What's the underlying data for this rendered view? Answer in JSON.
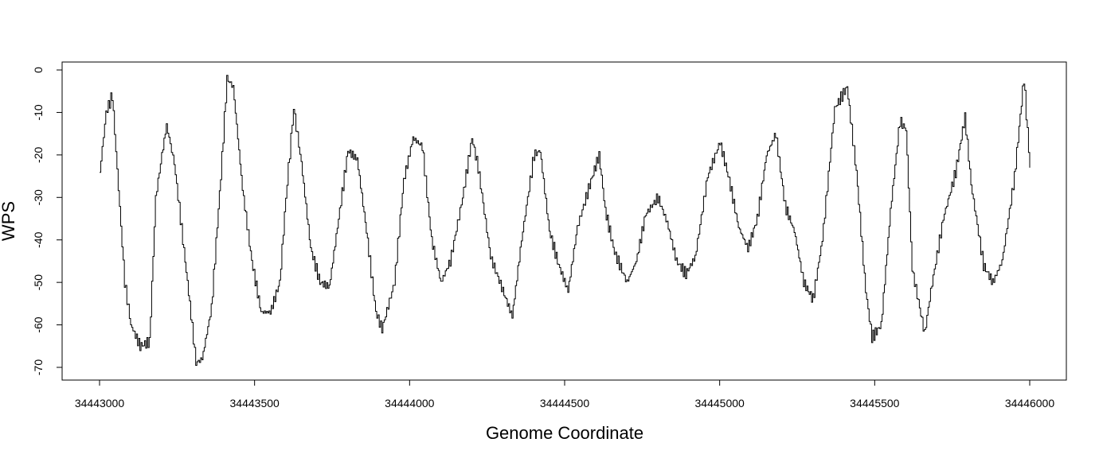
{
  "chart_data": {
    "type": "line",
    "title": "",
    "xlabel": "Genome Coordinate",
    "ylabel": "WPS",
    "xlim": [
      34443000,
      34446000
    ],
    "ylim": [
      -70,
      0
    ],
    "x_ticks": [
      34443000,
      34443500,
      34444000,
      34444500,
      34445000,
      34445500,
      34446000
    ],
    "x_tick_labels": [
      "34443000",
      "34443500",
      "34444000",
      "34444500",
      "34445000",
      "34445500",
      "34446000"
    ],
    "y_ticks": [
      0,
      -10,
      -20,
      -30,
      -40,
      -50,
      -60,
      -70
    ],
    "y_tick_labels": [
      "0",
      "-10",
      "-20",
      "-30",
      "-40",
      "-50",
      "-60",
      "-70"
    ],
    "grid": false,
    "legend": false,
    "line_color": "#000000",
    "series": [
      {
        "x": [
          34443000,
          34443020,
          34443040,
          34443060,
          34443080,
          34443100,
          34443130,
          34443160,
          34443180,
          34443200,
          34443215,
          34443240,
          34443260,
          34443290,
          34443310,
          34443330,
          34443360,
          34443390,
          34443410,
          34443430,
          34443460,
          34443490,
          34443520,
          34443550,
          34443580,
          34443600,
          34443625,
          34443650,
          34443680,
          34443710,
          34443740,
          34443770,
          34443800,
          34443830,
          34443860,
          34443890,
          34443910,
          34443950,
          34443980,
          34444010,
          34444040,
          34444070,
          34444100,
          34444130,
          34444170,
          34444200,
          34444220,
          34444260,
          34444300,
          34444330,
          34444360,
          34444400,
          34444420,
          34444450,
          34444480,
          34444510,
          34444540,
          34444580,
          34444610,
          34444630,
          34444660,
          34444700,
          34444730,
          34444760,
          34444800,
          34444830,
          34444860,
          34444890,
          34444920,
          34444960,
          34445000,
          34445030,
          34445060,
          34445090,
          34445120,
          34445150,
          34445180,
          34445210,
          34445240,
          34445270,
          34445300,
          34445330,
          34445370,
          34445410,
          34445440,
          34445470,
          34445490,
          34445520,
          34445550,
          34445580,
          34445600,
          34445620,
          34445660,
          34445680,
          34445720,
          34445760,
          34445790,
          34445810,
          34445850,
          34445880,
          34445910,
          34445950,
          34445980,
          34446000
        ],
        "values": [
          -24,
          -10,
          -6,
          -28,
          -50,
          -60,
          -65,
          -64,
          -30,
          -20,
          -13,
          -22,
          -35,
          -55,
          -69,
          -68,
          -56,
          -25,
          -2,
          -4,
          -28,
          -45,
          -57,
          -57,
          -50,
          -30,
          -9,
          -22,
          -42,
          -50,
          -51,
          -35,
          -19,
          -21,
          -38,
          -57,
          -61,
          -50,
          -26,
          -16,
          -18,
          -40,
          -50,
          -45,
          -30,
          -16,
          -23,
          -44,
          -52,
          -58,
          -40,
          -20,
          -19,
          -38,
          -46,
          -52,
          -37,
          -27,
          -20,
          -33,
          -43,
          -50,
          -45,
          -34,
          -30,
          -36,
          -45,
          -48,
          -44,
          -25,
          -17,
          -26,
          -37,
          -42,
          -35,
          -20,
          -15,
          -32,
          -38,
          -50,
          -54,
          -40,
          -9,
          -4,
          -24,
          -52,
          -63,
          -60,
          -33,
          -12,
          -14,
          -47,
          -62,
          -52,
          -35,
          -24,
          -11,
          -27,
          -46,
          -50,
          -45,
          -25,
          -2,
          -23
        ]
      }
    ]
  }
}
